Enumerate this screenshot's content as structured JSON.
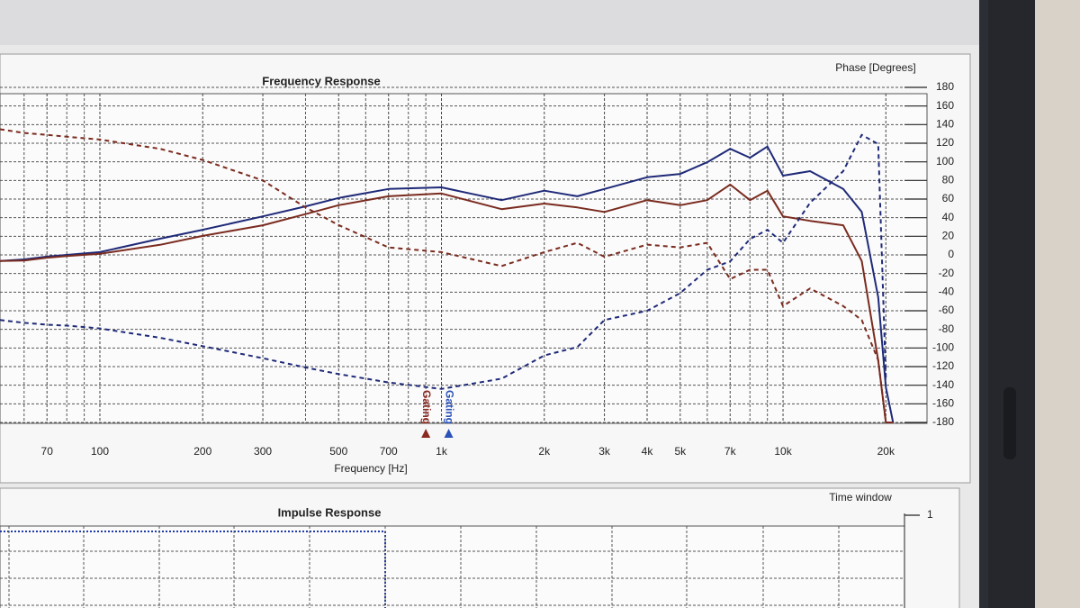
{
  "chart_data": [
    {
      "type": "line",
      "title": "Frequency Response",
      "x_label": "Frequency [Hz]",
      "y2_label": "Phase [Degrees]",
      "log_x": true,
      "grid": true,
      "xlim": [
        51,
        22000
      ],
      "xticks": [
        70,
        100,
        200,
        300,
        500,
        700,
        {
          "value": 1000,
          "label": "1k"
        },
        {
          "value": 2000,
          "label": "2k"
        },
        {
          "value": 3000,
          "label": "3k"
        },
        {
          "value": 4000,
          "label": "4k"
        },
        {
          "value": 5000,
          "label": "5k"
        },
        {
          "value": 7000,
          "label": "7k"
        },
        {
          "value": 10000,
          "label": "10k"
        },
        {
          "value": 20000,
          "label": "20k"
        }
      ],
      "x_minor_grid": [
        60,
        80,
        90,
        400,
        600,
        800,
        900,
        6000,
        8000,
        9000
      ],
      "ylim": [
        40,
        100
      ],
      "y2lim": [
        -180,
        180
      ],
      "y2ticks": [
        180,
        160,
        140,
        120,
        100,
        80,
        60,
        40,
        20,
        0,
        -20,
        -40,
        -60,
        -80,
        -100,
        -120,
        -140,
        -160,
        -180
      ],
      "x": [
        51,
        60,
        70,
        80,
        100,
        150,
        200,
        300,
        400,
        500,
        700,
        1000,
        1500,
        2000,
        2500,
        3000,
        4000,
        5000,
        6000,
        7000,
        8000,
        9000,
        10000,
        12000,
        15000,
        17000,
        19000,
        20000,
        21000
      ],
      "series": [
        {
          "color": "#1f2a78",
          "dash": false,
          "values": [
            68.9,
            69.2,
            69.7,
            70.0,
            70.5,
            72.9,
            74.5,
            76.9,
            78.7,
            80.2,
            81.8,
            82.1,
            79.8,
            81.5,
            80.5,
            81.8,
            83.9,
            84.5,
            86.6,
            89.0,
            87.4,
            89.4,
            84.2,
            85.0,
            81.8,
            77.7,
            62.4,
            46.3,
            40.0
          ]
        },
        {
          "color": "#7a2b1f",
          "dash": false,
          "values": [
            68.9,
            69.0,
            69.5,
            69.8,
            70.2,
            71.8,
            73.4,
            75.3,
            77.3,
            78.9,
            80.5,
            81.0,
            78.2,
            79.2,
            78.5,
            77.7,
            79.8,
            78.9,
            79.8,
            82.6,
            79.8,
            81.5,
            76.9,
            76.1,
            75.3,
            68.9,
            51.1,
            40.0,
            40.0
          ]
        },
        {
          "color": "#1f2a78",
          "dash": true,
          "axis": "y2",
          "values": [
            -70,
            -73,
            -75,
            -76,
            -79,
            -89,
            -98,
            -111,
            -121,
            -128,
            -137,
            -144,
            -133,
            -108,
            -99,
            -70,
            -60,
            -41,
            -16,
            -7,
            17,
            27,
            13,
            56,
            90,
            129,
            119,
            -133,
            null
          ]
        },
        {
          "color": "#7a2b1f",
          "dash": true,
          "axis": "y2",
          "values": [
            135,
            131,
            129,
            127,
            124,
            114,
            102,
            80,
            51,
            32,
            8,
            3,
            -12,
            3,
            13,
            -2,
            11,
            8,
            13,
            -26,
            -16,
            -16,
            -55,
            -36,
            -55,
            -70,
            -113,
            -180,
            null
          ]
        }
      ],
      "annotations": [
        {
          "text": "Gating",
          "x": 900,
          "color": "#8a2a20"
        },
        {
          "text": "Gating",
          "x": 1050,
          "color": "#2a52b8"
        }
      ]
    },
    {
      "type": "line",
      "title": "Impulse Response",
      "y2_label": "Time window",
      "ylim": [
        0,
        1
      ],
      "yticks": [
        1
      ]
    }
  ]
}
